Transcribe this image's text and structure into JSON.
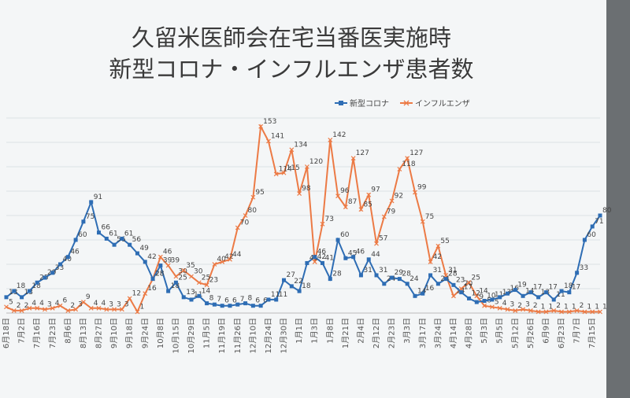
{
  "chart_data": {
    "type": "line",
    "title": [
      "久留米医師会在宅当番医実施時",
      "新型コロナ・インフルエンザ患者数"
    ],
    "categories": [
      "6月18日",
      null,
      "7月2日",
      null,
      "7月16日",
      null,
      "7月23日",
      null,
      "8月6日",
      null,
      "8月13日",
      null,
      "8月27日",
      null,
      "9月10日",
      null,
      "9月18日",
      null,
      "9月24日",
      null,
      "10月8日",
      null,
      "10月15日",
      null,
      "10月29日",
      null,
      "11月5日",
      null,
      "11月19日",
      null,
      "11月26日",
      null,
      "12月10日",
      null,
      "12月24日",
      null,
      "12月30日",
      null,
      "1月1日",
      null,
      "1月3日",
      null,
      "1月8日",
      null,
      "1月21日",
      null,
      "2月4日",
      null,
      "2月12日",
      null,
      "2月23日",
      null,
      "3月3日",
      null,
      "3月17日",
      null,
      "3月24日",
      null,
      "4月14日",
      null,
      "4月28日",
      null,
      "5月3日",
      null,
      "5月5日",
      null,
      "5月12日",
      null,
      "5月26日",
      null,
      "6月9日",
      null,
      "6月23日",
      null,
      "7月7日",
      null,
      "7月15日",
      null
    ],
    "series": [
      {
        "name": "新型コロナ",
        "color": "#2e6db4",
        "marker": "square",
        "values": [
          13,
          18,
          13,
          18,
          25,
          29,
          33,
          40,
          46,
          60,
          75,
          91,
          66,
          61,
          56,
          61,
          56,
          49,
          42,
          28,
          39,
          18,
          25,
          13,
          11,
          14,
          8,
          7,
          6,
          6,
          7,
          8,
          6,
          6,
          11,
          11,
          27,
          22,
          18,
          41,
          46,
          41,
          28,
          60,
          45,
          46,
          31,
          44,
          31,
          24,
          29,
          28,
          24,
          14,
          16,
          31,
          24,
          28,
          23,
          17,
          12,
          9,
          10,
          11,
          13,
          16,
          19,
          14,
          17,
          13,
          17,
          11,
          18,
          17,
          33,
          60,
          71,
          80
        ]
      },
      {
        "name": "インフルエンザ",
        "color": "#ec7a45",
        "marker": "x",
        "values": [
          5,
          2,
          2,
          4,
          4,
          3,
          4,
          6,
          2,
          3,
          9,
          4,
          4,
          3,
          3,
          3,
          12,
          1,
          16,
          28,
          46,
          39,
          30,
          35,
          30,
          25,
          23,
          40,
          42,
          44,
          70,
          80,
          95,
          153,
          141,
          114,
          115,
          134,
          98,
          120,
          42,
          73,
          142,
          96,
          87,
          127,
          85,
          97,
          57,
          79,
          92,
          118,
          127,
          99,
          75,
          42,
          55,
          31,
          14,
          20,
          25,
          14,
          6,
          5,
          4,
          3,
          2,
          3,
          2,
          1,
          1,
          2,
          1,
          1,
          2,
          1,
          1,
          1
        ]
      }
    ],
    "ylim": [
      0,
      160
    ],
    "grid": true,
    "legend": "top"
  }
}
